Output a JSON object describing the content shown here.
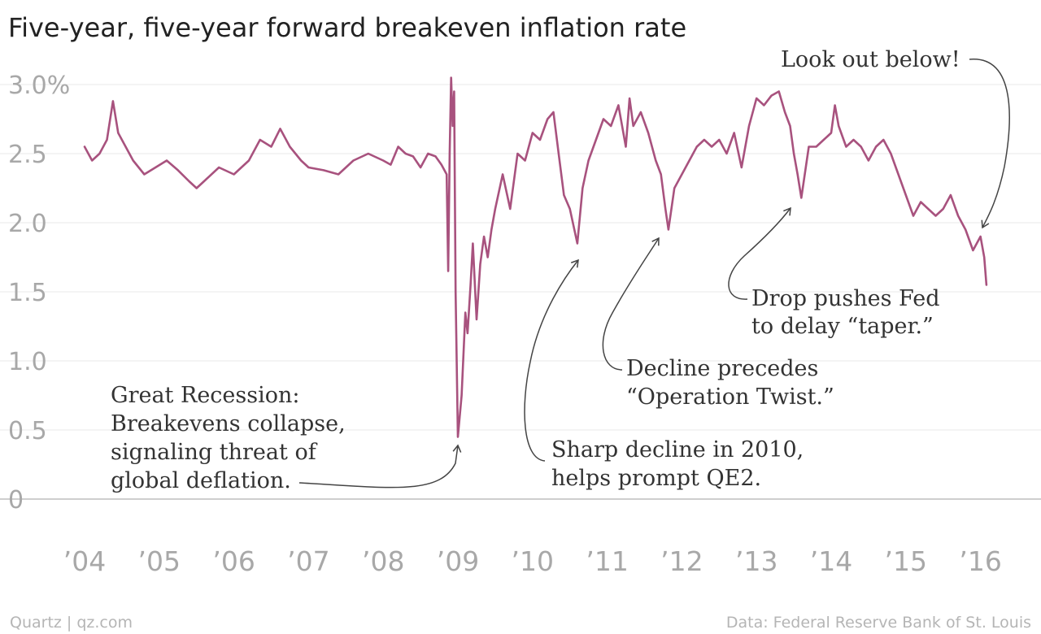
{
  "chart_data": {
    "type": "line",
    "title": "Five-year, five-year forward breakeven inflation rate",
    "xlabel": "",
    "ylabel": "",
    "ylim": [
      0,
      3.0
    ],
    "xlim": [
      2004.0,
      2016.35
    ],
    "y_ticks": [
      {
        "value": 3.0,
        "label": "3.0%"
      },
      {
        "value": 2.5,
        "label": "2.5"
      },
      {
        "value": 2.0,
        "label": "2.0"
      },
      {
        "value": 1.5,
        "label": "1.5"
      },
      {
        "value": 1.0,
        "label": "1.0"
      },
      {
        "value": 0.5,
        "label": "0.5"
      },
      {
        "value": 0,
        "label": "0"
      }
    ],
    "x_ticks": [
      {
        "value": 2004,
        "label": "’04"
      },
      {
        "value": 2005,
        "label": "’05"
      },
      {
        "value": 2006,
        "label": "’06"
      },
      {
        "value": 2007,
        "label": "’07"
      },
      {
        "value": 2008,
        "label": "’08"
      },
      {
        "value": 2009,
        "label": "’09"
      },
      {
        "value": 2010,
        "label": "’10"
      },
      {
        "value": 2011,
        "label": "’11"
      },
      {
        "value": 2012,
        "label": "’12"
      },
      {
        "value": 2013,
        "label": "’13"
      },
      {
        "value": 2014,
        "label": "’14"
      },
      {
        "value": 2015,
        "label": "’15"
      },
      {
        "value": 2016,
        "label": "’16"
      }
    ],
    "grid": true,
    "series": [
      {
        "color": "#a8527e",
        "x": [
          2004.0,
          2004.1,
          2004.2,
          2004.3,
          2004.38,
          2004.45,
          2004.55,
          2004.65,
          2004.8,
          2004.95,
          2005.1,
          2005.25,
          2005.4,
          2005.5,
          2005.6,
          2005.8,
          2006.0,
          2006.2,
          2006.35,
          2006.5,
          2006.62,
          2006.75,
          2006.9,
          2007.0,
          2007.2,
          2007.4,
          2007.6,
          2007.8,
          2008.0,
          2008.1,
          2008.2,
          2008.3,
          2008.4,
          2008.5,
          2008.6,
          2008.7,
          2008.78,
          2008.85,
          2008.87,
          2008.89,
          2008.91,
          2008.93,
          2008.95,
          2008.97,
          2009.0,
          2009.05,
          2009.1,
          2009.13,
          2009.17,
          2009.2,
          2009.25,
          2009.3,
          2009.35,
          2009.4,
          2009.45,
          2009.5,
          2009.6,
          2009.7,
          2009.8,
          2009.9,
          2010.0,
          2010.1,
          2010.2,
          2010.28,
          2010.35,
          2010.42,
          2010.5,
          2010.6,
          2010.67,
          2010.75,
          2010.85,
          2010.95,
          2011.05,
          2011.15,
          2011.25,
          2011.3,
          2011.35,
          2011.45,
          2011.55,
          2011.65,
          2011.72,
          2011.78,
          2011.82,
          2011.9,
          2012.0,
          2012.1,
          2012.2,
          2012.3,
          2012.4,
          2012.5,
          2012.6,
          2012.7,
          2012.8,
          2012.9,
          2013.0,
          2013.1,
          2013.2,
          2013.3,
          2013.38,
          2013.45,
          2013.5,
          2013.55,
          2013.6,
          2013.7,
          2013.8,
          2013.9,
          2014.0,
          2014.05,
          2014.1,
          2014.2,
          2014.3,
          2014.4,
          2014.5,
          2014.6,
          2014.7,
          2014.8,
          2014.9,
          2015.0,
          2015.1,
          2015.2,
          2015.3,
          2015.4,
          2015.5,
          2015.6,
          2015.7,
          2015.8,
          2015.9,
          2016.0,
          2016.05,
          2016.08
        ],
        "y": [
          2.55,
          2.45,
          2.5,
          2.6,
          2.88,
          2.65,
          2.55,
          2.45,
          2.35,
          2.4,
          2.45,
          2.38,
          2.3,
          2.25,
          2.3,
          2.4,
          2.35,
          2.45,
          2.6,
          2.55,
          2.68,
          2.55,
          2.45,
          2.4,
          2.38,
          2.35,
          2.45,
          2.5,
          2.45,
          2.42,
          2.55,
          2.5,
          2.48,
          2.4,
          2.5,
          2.48,
          2.42,
          2.35,
          1.65,
          2.5,
          3.05,
          2.7,
          2.95,
          1.5,
          0.45,
          0.75,
          1.35,
          1.2,
          1.55,
          1.85,
          1.3,
          1.7,
          1.9,
          1.75,
          1.95,
          2.1,
          2.35,
          2.1,
          2.5,
          2.45,
          2.65,
          2.6,
          2.75,
          2.8,
          2.5,
          2.2,
          2.1,
          1.85,
          2.25,
          2.45,
          2.6,
          2.75,
          2.7,
          2.85,
          2.55,
          2.9,
          2.7,
          2.8,
          2.65,
          2.45,
          2.35,
          2.1,
          1.95,
          2.25,
          2.35,
          2.45,
          2.55,
          2.6,
          2.55,
          2.6,
          2.5,
          2.65,
          2.4,
          2.7,
          2.9,
          2.85,
          2.92,
          2.95,
          2.8,
          2.7,
          2.5,
          2.35,
          2.18,
          2.55,
          2.55,
          2.6,
          2.65,
          2.85,
          2.7,
          2.55,
          2.6,
          2.55,
          2.45,
          2.55,
          2.6,
          2.5,
          2.35,
          2.2,
          2.05,
          2.15,
          2.1,
          2.05,
          2.1,
          2.2,
          2.05,
          1.95,
          1.8,
          1.9,
          1.75,
          1.55
        ]
      }
    ],
    "annotations": [
      {
        "lines": [
          "Great Recession:",
          "Breakevens collapse,",
          "signaling threat of",
          "global deflation."
        ],
        "points_to": {
          "x": 2008.99,
          "y": 0.43
        }
      },
      {
        "lines": [
          "Sharp decline in 2010,",
          "helps prompt QE2."
        ],
        "points_to": {
          "x": 2010.6,
          "y": 1.79
        }
      },
      {
        "lines": [
          "Decline precedes",
          "“Operation Twist.”"
        ],
        "points_to": {
          "x": 2011.75,
          "y": 1.88
        }
      },
      {
        "lines": [
          "Drop pushes Fed",
          "to delay “taper.”"
        ],
        "points_to": {
          "x": 2013.5,
          "y": 2.13
        }
      },
      {
        "lines": [
          "Look out below!"
        ],
        "points_to": {
          "x": 2016.0,
          "y": 1.95
        }
      }
    ]
  },
  "footer": {
    "left": "Quartz | qz.com",
    "right": "Data: Federal Reserve Bank of St. Louis"
  }
}
